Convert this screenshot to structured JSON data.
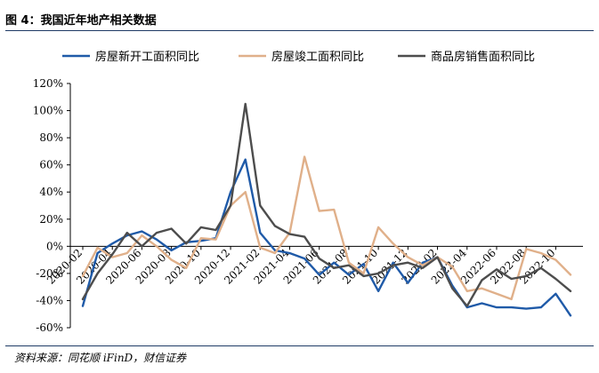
{
  "header": {
    "figure_title": "图 4：我国近年地产相关数据"
  },
  "footer": {
    "source": "资料来源：同花顺 iFinD，财信证券"
  },
  "chart_data": {
    "type": "line",
    "title": "",
    "xlabel": "",
    "ylabel": "",
    "ylim": [
      -60,
      120
    ],
    "yticks": [
      -60,
      -40,
      -20,
      0,
      20,
      40,
      60,
      80,
      100,
      120
    ],
    "ytick_labels": [
      "-60%",
      "-40%",
      "-20%",
      "0%",
      "20%",
      "40%",
      "60%",
      "80%",
      "100%",
      "120%"
    ],
    "x": [
      "2020-02",
      "2020-03",
      "2020-04",
      "2020-05",
      "2020-06",
      "2020-07",
      "2020-08",
      "2020-09",
      "2020-10",
      "2020-11",
      "2020-12",
      "2021-01",
      "2021-02",
      "2021-03",
      "2021-04",
      "2021-05",
      "2021-06",
      "2021-07",
      "2021-08",
      "2021-09",
      "2021-10",
      "2021-11",
      "2021-12",
      "2022-01",
      "2022-02",
      "2022-03",
      "2022-04",
      "2022-05",
      "2022-06",
      "2022-07",
      "2022-08",
      "2022-09",
      "2022-10",
      "2022-11"
    ],
    "xtick_labels": [
      "2020-02",
      "2020-04",
      "2020-06",
      "2020-08",
      "2020-10",
      "2020-12",
      "2021-02",
      "2021-04",
      "2021-06",
      "2021-08",
      "2021-10",
      "2021-12",
      "2022-02",
      "2022-04",
      "2022-06",
      "2022-08",
      "2022-10"
    ],
    "legend_position": "top",
    "grid": false,
    "series": [
      {
        "name": "房屋新开工面积同比",
        "color": "#1f5aa8",
        "values": [
          -44,
          -5,
          2,
          8,
          11,
          5,
          -3,
          3,
          4,
          6,
          40,
          64,
          10,
          -3,
          -5,
          -9,
          -21,
          -12,
          -21,
          -13,
          -33,
          -12,
          -27,
          -12,
          -8,
          -29,
          -45,
          -42,
          -45,
          -45,
          -46,
          -45,
          -35,
          -51
        ]
      },
      {
        "name": "房屋竣工面积同比",
        "color": "#e0b08a",
        "values": [
          -22,
          -1,
          -8,
          -5,
          8,
          0,
          -10,
          -16,
          6,
          5,
          30,
          40,
          -1,
          -5,
          10,
          66,
          26,
          27,
          -12,
          -20,
          14,
          2,
          -8,
          -14,
          -8,
          -15,
          -33,
          -31,
          -35,
          -39,
          -2,
          -5,
          -10,
          -21
        ]
      },
      {
        "name": "商品房销售面积同比",
        "color": "#4d4d4d",
        "values": [
          -39,
          -20,
          -6,
          10,
          0,
          10,
          13,
          2,
          14,
          12,
          30,
          105,
          30,
          15,
          9,
          7,
          -9,
          -16,
          -14,
          -22,
          -20,
          -14,
          -12,
          -16,
          -8,
          -31,
          -44,
          -25,
          -17,
          -24,
          -22,
          -16,
          -24,
          -33
        ]
      }
    ]
  }
}
